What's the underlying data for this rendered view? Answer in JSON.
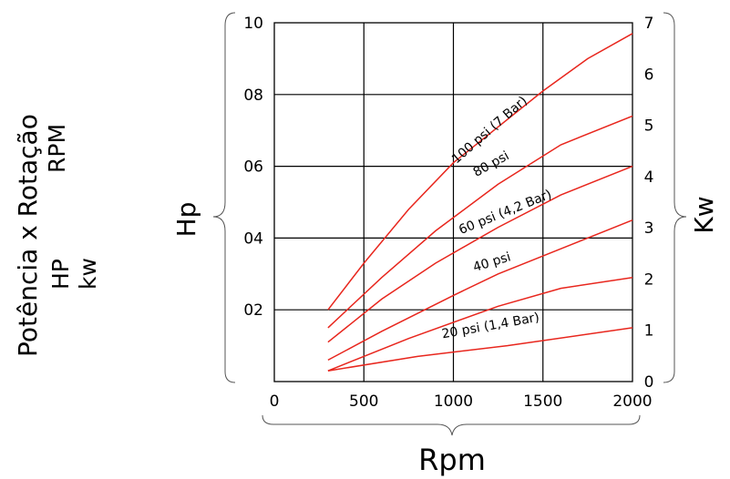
{
  "side_labels": {
    "title": "Potência x Rotação",
    "rpm": "RPM",
    "hp": "HP",
    "kw": "kw"
  },
  "chart_data": {
    "type": "line",
    "xlabel": "Rpm",
    "ylabel": "Hp",
    "y2label": "Kw",
    "xlim": [
      0,
      2000
    ],
    "ylim": [
      0,
      10
    ],
    "y2lim": [
      0,
      7
    ],
    "x_ticks": [
      "0",
      "500",
      "1000",
      "1500",
      "2000"
    ],
    "y_ticks": [
      "",
      "02",
      "04",
      "06",
      "08",
      "10"
    ],
    "y2_ticks": [
      "0",
      "1",
      "2",
      "3",
      "4",
      "5",
      "6",
      "7"
    ],
    "grid": true,
    "line_color": "#e8261d",
    "series": [
      {
        "name": "100 psi (7 Bar)",
        "x": [
          300,
          500,
          750,
          1000,
          1250,
          1500,
          1750,
          2000
        ],
        "y": [
          2.0,
          3.3,
          4.8,
          6.1,
          7.1,
          8.1,
          9.0,
          9.7
        ]
      },
      {
        "name": "80 psi",
        "x": [
          300,
          600,
          900,
          1250,
          1600,
          2000
        ],
        "y": [
          1.5,
          2.9,
          4.2,
          5.5,
          6.6,
          7.4
        ]
      },
      {
        "name": "",
        "x": [
          300,
          600,
          900,
          1250,
          1600,
          2000
        ],
        "y": [
          1.1,
          2.3,
          3.3,
          4.3,
          5.2,
          6.0
        ]
      },
      {
        "name": "60 psi (4,2 Bar)",
        "x": [
          300,
          600,
          1000,
          1250,
          1600,
          2000
        ],
        "y": [
          0.6,
          1.4,
          2.4,
          3.0,
          3.7,
          4.5
        ]
      },
      {
        "name": "40 psi",
        "x": [
          300,
          750,
          1250,
          1600,
          2000
        ],
        "y": [
          0.3,
          1.2,
          2.1,
          2.6,
          2.9
        ]
      },
      {
        "name": "20 psi (1,4 Bar)",
        "x": [
          300,
          800,
          1300,
          2000
        ],
        "y": [
          0.3,
          0.7,
          1.0,
          1.5
        ]
      }
    ],
    "label_angles": [
      -41,
      -29,
      -22,
      -17,
      -10
    ]
  }
}
